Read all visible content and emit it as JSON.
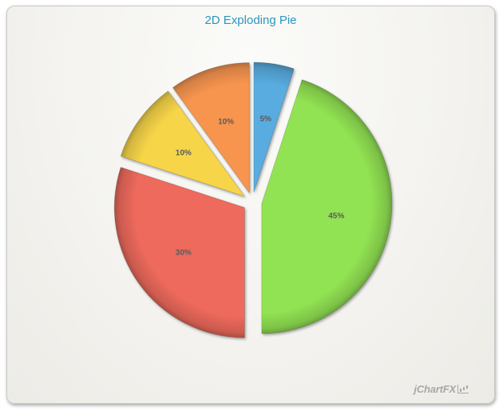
{
  "chart_data": {
    "type": "pie",
    "title": "2D Exploding Pie",
    "slices": [
      {
        "value": 5,
        "label": "5%",
        "color": "#58ace0"
      },
      {
        "value": 45,
        "label": "45%",
        "color": "#92e352"
      },
      {
        "value": 30,
        "label": "30%",
        "color": "#ee6a5c"
      },
      {
        "value": 10,
        "label": "10%",
        "color": "#f7d54a"
      },
      {
        "value": 10,
        "label": "10%",
        "color": "#f7954f"
      }
    ],
    "start_angle_deg": 0,
    "direction": "clockwise",
    "exploded": true
  },
  "brand": {
    "name": "jChartFX",
    "icon": "chart-logo-icon"
  }
}
